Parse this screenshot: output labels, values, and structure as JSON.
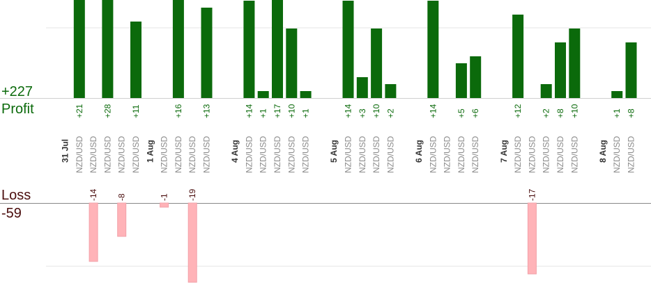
{
  "summary": {
    "profit_total": "+227",
    "profit_label": "Profit",
    "loss_label": "Loss",
    "loss_total": "-59"
  },
  "colors": {
    "profit_bar": "#0b6a0b",
    "profit_text": "#0b6a0b",
    "loss_bar": "#ffb3b8",
    "loss_text": "#4a0d0d",
    "date_text": "#333333",
    "pair_text": "#8a8a8a",
    "grid": "#e6e6e6",
    "axis": "#888888"
  },
  "chart_data": {
    "type": "bar",
    "pair": "NZD/USD",
    "slots": [
      {
        "date": "31 Jul"
      },
      {
        "pair": "NZD/USD",
        "profit": 21,
        "profit_label": "+21"
      },
      {
        "pair": "NZD/USD",
        "loss": -14,
        "loss_label": "-14"
      },
      {
        "pair": "NZD/USD",
        "profit": 28,
        "profit_label": "+28"
      },
      {
        "pair": "NZD/USD",
        "loss": -8,
        "loss_label": "-8"
      },
      {
        "pair": "NZD/USD",
        "profit": 11,
        "profit_label": "+11"
      },
      {
        "date": "1 Aug"
      },
      {
        "pair": "NZD/USD",
        "loss": -1,
        "loss_label": "-1"
      },
      {
        "pair": "NZD/USD",
        "profit": 16,
        "profit_label": "+16"
      },
      {
        "pair": "NZD/USD",
        "loss": -19,
        "loss_label": "-19"
      },
      {
        "pair": "NZD/USD",
        "profit": 13,
        "profit_label": "+13"
      },
      {
        "spacer": true
      },
      {
        "date": "4 Aug"
      },
      {
        "pair": "NZD/USD",
        "profit": 14,
        "profit_label": "+14"
      },
      {
        "pair": "NZD/USD",
        "profit": 1,
        "profit_label": "+1"
      },
      {
        "pair": "NZD/USD",
        "profit": 17,
        "profit_label": "+17"
      },
      {
        "pair": "NZD/USD",
        "profit": 10,
        "profit_label": "+10"
      },
      {
        "pair": "NZD/USD",
        "profit": 1,
        "profit_label": "+1"
      },
      {
        "spacer": true
      },
      {
        "date": "5 Aug"
      },
      {
        "pair": "NZD/USD",
        "profit": 14,
        "profit_label": "+14"
      },
      {
        "pair": "NZD/USD",
        "profit": 3,
        "profit_label": "+3"
      },
      {
        "pair": "NZD/USD",
        "profit": 10,
        "profit_label": "+10"
      },
      {
        "pair": "NZD/USD",
        "profit": 2,
        "profit_label": "+2"
      },
      {
        "spacer": true
      },
      {
        "date": "6 Aug"
      },
      {
        "pair": "NZD/USD",
        "profit": 14,
        "profit_label": "+14"
      },
      {
        "pair": "NZD/USD"
      },
      {
        "pair": "NZD/USD",
        "profit": 5,
        "profit_label": "+5"
      },
      {
        "pair": "NZD/USD",
        "profit": 6,
        "profit_label": "+6"
      },
      {
        "spacer": true
      },
      {
        "date": "7 Aug"
      },
      {
        "pair": "NZD/USD",
        "profit": 12,
        "profit_label": "+12"
      },
      {
        "pair": "NZD/USD",
        "loss": -17,
        "loss_label": "-17"
      },
      {
        "pair": "NZD/USD",
        "profit": 2,
        "profit_label": "+2"
      },
      {
        "pair": "NZD/USD",
        "profit": 8,
        "profit_label": "+8"
      },
      {
        "pair": "NZD/USD",
        "profit": 10,
        "profit_label": "+10"
      },
      {
        "spacer": true
      },
      {
        "date": "8 Aug"
      },
      {
        "pair": "NZD/USD",
        "profit": 1,
        "profit_label": "+1"
      },
      {
        "pair": "NZD/USD",
        "profit": 8,
        "profit_label": "+8"
      }
    ],
    "profit_axis_max": 10,
    "loss_axis_min": -10,
    "grid": true
  }
}
